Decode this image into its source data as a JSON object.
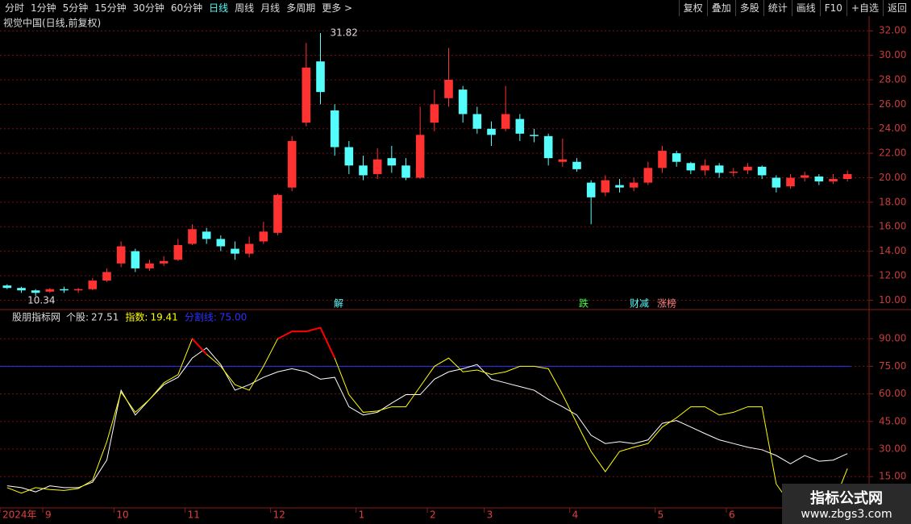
{
  "toolbar": {
    "left": [
      "分时",
      "1分钟",
      "5分钟",
      "15分钟",
      "30分钟",
      "60分钟",
      "日线",
      "周线",
      "月线",
      "多周期",
      "更多 >"
    ],
    "active": "日线",
    "right": [
      "复权",
      "叠加",
      "多股",
      "统计",
      "画线",
      "F10",
      "+自选",
      "返回"
    ]
  },
  "chart_data": [
    {
      "type": "candlestick",
      "title": "视觉中国(日线,前复权)",
      "categories": [
        "2024年",
        null,
        null,
        "9",
        null,
        null,
        null,
        null,
        "10",
        null,
        null,
        null,
        null,
        "11",
        null,
        null,
        null,
        null,
        null,
        "12",
        null,
        null,
        null,
        null,
        null,
        "1",
        null,
        null,
        null,
        null,
        "2",
        null,
        null,
        null,
        "3",
        null,
        null,
        null,
        null,
        null,
        "4",
        null,
        null,
        null,
        null,
        null,
        "5",
        null,
        null,
        null,
        null,
        "6",
        null,
        null,
        null,
        null,
        null,
        null,
        null,
        null
      ],
      "open": [
        11.2,
        11.0,
        10.8,
        10.7,
        10.9,
        10.8,
        10.9,
        11.6,
        13.0,
        14.0,
        12.6,
        13.0,
        13.3,
        14.6,
        15.6,
        15.0,
        14.2,
        13.8,
        14.8,
        15.5,
        19.2,
        24.5,
        29.5,
        25.5,
        22.5,
        21.0,
        20.3,
        21.6,
        21.0,
        20.0,
        24.5,
        26.5,
        27.2,
        25.2,
        24.0,
        24.0,
        24.8,
        23.5,
        23.4,
        21.3,
        21.3,
        19.6,
        18.8,
        19.4,
        19.2,
        19.6,
        20.8,
        22.0,
        21.2,
        20.6,
        21.0,
        20.4,
        20.6,
        20.9,
        20.0,
        19.3,
        20.0,
        20.1,
        19.7,
        19.9
      ],
      "high": [
        11.3,
        11.1,
        10.9,
        11.0,
        11.1,
        11.0,
        11.8,
        12.6,
        14.8,
        14.2,
        13.3,
        13.6,
        15.0,
        16.2,
        15.9,
        15.3,
        14.8,
        15.2,
        16.4,
        18.7,
        23.4,
        31.0,
        31.82,
        26.0,
        23.0,
        21.8,
        22.4,
        22.6,
        21.6,
        25.8,
        27.2,
        30.6,
        27.5,
        25.8,
        24.6,
        27.5,
        25.2,
        24.0,
        23.6,
        23.2,
        21.6,
        19.8,
        20.2,
        19.9,
        20.0,
        21.3,
        22.6,
        22.2,
        21.3,
        21.5,
        21.2,
        20.8,
        21.2,
        21.0,
        20.2,
        20.3,
        20.5,
        20.3,
        20.3,
        20.6
      ],
      "low": [
        10.9,
        10.6,
        10.34,
        10.6,
        10.6,
        10.6,
        10.8,
        11.5,
        12.7,
        12.3,
        12.4,
        12.8,
        13.2,
        14.5,
        14.6,
        14.0,
        13.3,
        13.5,
        14.6,
        15.3,
        18.9,
        24.2,
        26.0,
        21.8,
        20.3,
        19.8,
        19.9,
        20.4,
        19.8,
        19.9,
        23.8,
        25.8,
        24.5,
        23.6,
        22.6,
        23.8,
        23.0,
        22.9,
        21.0,
        20.9,
        20.5,
        16.2,
        18.5,
        18.8,
        18.9,
        19.4,
        20.4,
        20.9,
        20.3,
        20.2,
        20.0,
        20.1,
        20.3,
        19.9,
        18.8,
        19.1,
        19.7,
        19.4,
        19.5,
        19.7
      ],
      "close": [
        11.0,
        10.8,
        10.6,
        10.9,
        10.8,
        10.9,
        11.6,
        12.3,
        14.4,
        12.6,
        13.0,
        13.2,
        14.5,
        15.8,
        15.0,
        14.4,
        13.8,
        14.6,
        15.6,
        18.6,
        23.0,
        29.0,
        27.0,
        22.5,
        21.0,
        20.2,
        21.5,
        21.0,
        20.0,
        23.5,
        26.0,
        28.0,
        25.2,
        24.0,
        23.5,
        25.2,
        23.6,
        23.4,
        21.6,
        21.5,
        20.7,
        18.4,
        19.8,
        19.2,
        19.6,
        20.8,
        22.2,
        21.3,
        20.6,
        21.0,
        20.4,
        20.5,
        20.9,
        20.2,
        19.2,
        20.0,
        20.2,
        19.7,
        19.9,
        20.3
      ],
      "up_color": "#ff3232",
      "down_color": "#54fcfc",
      "high_label": 31.82,
      "low_label": 10.34,
      "annotations": [
        {
          "text": "解",
          "color": "#54fcfc"
        },
        {
          "text": "跌",
          "color": "#40ff40"
        },
        {
          "text": "财减",
          "color": "#54fcfc"
        },
        {
          "text": "涨榜",
          "color": "#ff8080"
        }
      ],
      "ylim": [
        9.3,
        33.2
      ],
      "yticks": [
        {
          "value": 10,
          "label": "10.00"
        },
        {
          "value": 12,
          "label": "12.00"
        },
        {
          "value": 14,
          "label": "14.00"
        },
        {
          "value": 16,
          "label": "16.00"
        },
        {
          "value": 18,
          "label": "18.00"
        },
        {
          "value": 20,
          "label": "20.00"
        },
        {
          "value": 22,
          "label": "22.00"
        },
        {
          "value": 24,
          "label": "24.00"
        },
        {
          "value": 26,
          "label": "26.00"
        },
        {
          "value": 28,
          "label": "28.00"
        },
        {
          "value": 30,
          "label": "30.00"
        },
        {
          "value": 32,
          "label": "32.00"
        }
      ]
    },
    {
      "type": "line",
      "title": "股朋指标网",
      "series": [
        {
          "name": "个股:",
          "color": "#ffffff",
          "current": 27.51,
          "values": [
            10,
            9,
            6.7,
            10,
            9,
            9,
            12,
            24,
            62,
            48.5,
            57,
            65,
            69,
            79.5,
            85,
            76,
            62,
            65,
            69,
            72,
            73.7,
            72,
            68,
            69,
            53,
            48.5,
            50,
            55,
            59.6,
            59.6,
            68,
            72,
            73.7,
            76,
            68,
            66,
            64,
            62,
            57,
            53,
            48.5,
            37.5,
            33,
            34,
            33,
            35,
            44,
            45.5,
            42,
            38.4,
            35,
            33,
            31,
            29.6,
            26.5,
            22,
            26.5,
            23.4,
            24,
            27.51
          ]
        },
        {
          "name": "指数:",
          "color": "#ffff00",
          "highlight_color": "#ff0000",
          "current": 19.41,
          "values": [
            9,
            6,
            9,
            8,
            7.5,
            8.5,
            13,
            34,
            61,
            50,
            57,
            66,
            70.5,
            90,
            81.6,
            75,
            65,
            62,
            75,
            90,
            94,
            94,
            96,
            79.5,
            59.6,
            50,
            50.7,
            53,
            53,
            64,
            75,
            79.5,
            72,
            73,
            70.6,
            72,
            75,
            75,
            73.7,
            59.6,
            44,
            28.7,
            17.7,
            28.7,
            31,
            33,
            42,
            47,
            53,
            53,
            48.5,
            50,
            53,
            53,
            11,
            0,
            0,
            0,
            0,
            19.41
          ]
        }
      ],
      "threshold": {
        "name": "分割线:",
        "value": 75,
        "label": "75.00",
        "color": "#3030ff"
      },
      "ylim": [
        -2,
        105
      ],
      "yticks": [
        {
          "value": 15,
          "label": "15.00"
        },
        {
          "value": 30,
          "label": "30.00"
        },
        {
          "value": 45,
          "label": "45.00"
        },
        {
          "value": 60,
          "label": "60.00"
        },
        {
          "value": 75,
          "label": "75.00"
        },
        {
          "value": 90,
          "label": "90.00"
        }
      ]
    }
  ],
  "watermark": {
    "title": "指标公式网",
    "url": "www.zbgs3.com"
  }
}
